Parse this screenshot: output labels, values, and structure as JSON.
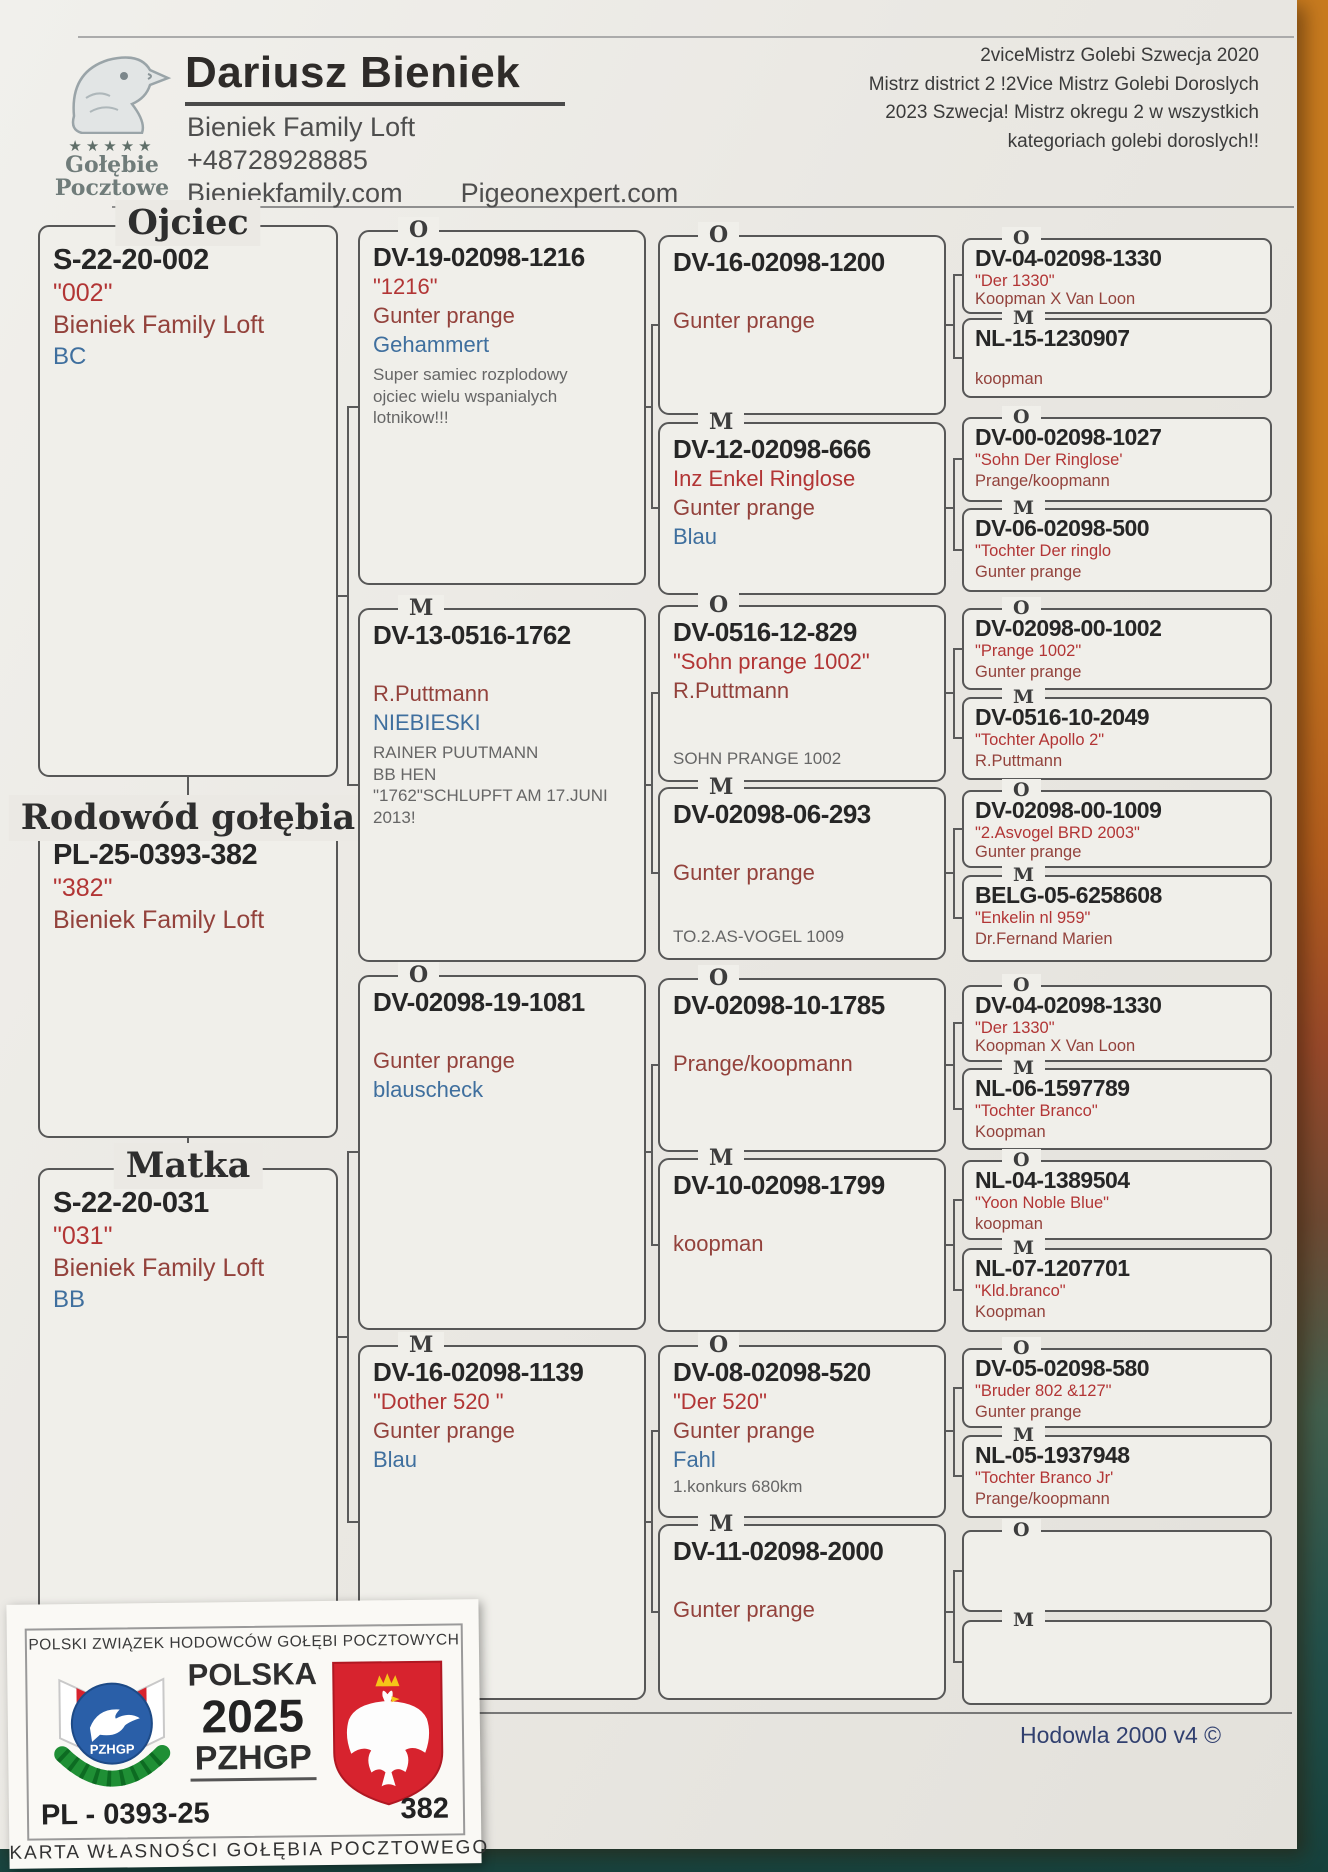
{
  "header": {
    "name": "Dariusz Bieniek",
    "loft": "Bieniek Family Loft",
    "phone": "+48728928885",
    "site1": "Bieniekfamily.com",
    "site2": "Pigeonexpert.com",
    "logo": {
      "stars": "★★★★★",
      "line1": "Gołębie",
      "line2": "Pocztowe"
    },
    "achievements": {
      "line1": "2viceMistrz Golebi Szwecja 2020",
      "line2": "Mistrz district 2 !2Vice Mistrz Golebi Doroslych",
      "line3": "2023 Szwecja! Mistrz okregu 2 w wszystkich",
      "line4": "kategoriach golebi doroslych!!"
    }
  },
  "pedigree": {
    "father": {
      "title": "Ojciec",
      "ring": "S-22-20-002",
      "name": "\"002\"",
      "loft": "Bieniek Family Loft",
      "color": "BC"
    },
    "subject": {
      "title": "Rodowód gołębia",
      "ring": "PL-25-0393-382",
      "name": "\"382\"",
      "loft": "Bieniek Family Loft",
      "color": ""
    },
    "mother": {
      "title": "Matka",
      "ring": "S-22-20-031",
      "name": "\"031\"",
      "loft": "Bieniek Family Loft",
      "color": "BB"
    },
    "gen2": [
      {
        "sex": "O",
        "ring": "DV-19-02098-1216",
        "name": "\"1216\"",
        "loft": "Gunter prange",
        "color": "Gehammert",
        "note": "Super samiec rozplodowy\nojciec wielu wspanialych\nlotnikow!!!"
      },
      {
        "sex": "M",
        "ring": "DV-13-0516-1762",
        "name": "",
        "loft": "R.Puttmann",
        "color": "NIEBIESKI",
        "note": "RAINER PUUTMANN\nBB HEN\n\"1762\"SCHLUPFT AM 17.JUNI\n2013!"
      },
      {
        "sex": "O",
        "ring": "DV-02098-19-1081",
        "name": "",
        "loft": "Gunter prange",
        "color": "blauscheck",
        "note": ""
      },
      {
        "sex": "M",
        "ring": "DV-16-02098-1139",
        "name": "\"Dother 520 \"",
        "loft": "Gunter prange",
        "color": "Blau",
        "note": ""
      }
    ],
    "gen3": [
      {
        "sex": "O",
        "ring": "DV-16-02098-1200",
        "name": "",
        "loft": "Gunter prange",
        "color": "",
        "note": ""
      },
      {
        "sex": "M",
        "ring": "DV-12-02098-666",
        "name": "Inz Enkel Ringlose",
        "loft": "Gunter prange",
        "color": "Blau",
        "note": ""
      },
      {
        "sex": "O",
        "ring": "DV-0516-12-829",
        "name": "\"Sohn prange 1002\"",
        "loft": "R.Puttmann",
        "color": "",
        "note": "SOHN PRANGE 1002"
      },
      {
        "sex": "M",
        "ring": "DV-02098-06-293",
        "name": "",
        "loft": "Gunter prange",
        "color": "",
        "note": "TO.2.AS-VOGEL 1009"
      },
      {
        "sex": "O",
        "ring": "DV-02098-10-1785",
        "name": "",
        "loft": "Prange/koopmann",
        "color": "",
        "note": ""
      },
      {
        "sex": "M",
        "ring": "DV-10-02098-1799",
        "name": "",
        "loft": "koopman",
        "color": "",
        "note": ""
      },
      {
        "sex": "O",
        "ring": "DV-08-02098-520",
        "name": "\"Der 520\"",
        "loft": "Gunter prange",
        "color": "Fahl",
        "note": "1.konkurs  680km"
      },
      {
        "sex": "M",
        "ring": "DV-11-02098-2000",
        "name": "",
        "loft": "Gunter prange",
        "color": "",
        "note": ""
      }
    ],
    "gen4": [
      {
        "sex": "O",
        "ring": "DV-04-02098-1330",
        "name": "\"Der 1330\"",
        "loft": "Koopman X Van Loon"
      },
      {
        "sex": "M",
        "ring": "NL-15-1230907",
        "name": "",
        "loft": "koopman"
      },
      {
        "sex": "O",
        "ring": "DV-00-02098-1027",
        "name": "\"Sohn Der Ringlose'",
        "loft": "Prange/koopmann"
      },
      {
        "sex": "M",
        "ring": "DV-06-02098-500",
        "name": "\"Tochter Der ringlo",
        "loft": "Gunter prange"
      },
      {
        "sex": "O",
        "ring": "DV-02098-00-1002",
        "name": "\"Prange 1002\"",
        "loft": "Gunter prange"
      },
      {
        "sex": "M",
        "ring": "DV-0516-10-2049",
        "name": "\"Tochter Apollo 2\"",
        "loft": "R.Puttmann"
      },
      {
        "sex": "O",
        "ring": "DV-02098-00-1009",
        "name": "\"2.Asvogel BRD 2003\"",
        "loft": "Gunter prange"
      },
      {
        "sex": "M",
        "ring": "BELG-05-6258608",
        "name": "\"Enkelin nl 959\"",
        "loft": "Dr.Fernand Marien"
      },
      {
        "sex": "O",
        "ring": "DV-04-02098-1330",
        "name": "\"Der 1330\"",
        "loft": "Koopman X Van Loon"
      },
      {
        "sex": "M",
        "ring": "NL-06-1597789",
        "name": "\"Tochter Branco\"",
        "loft": "Koopman"
      },
      {
        "sex": "O",
        "ring": "NL-04-1389504",
        "name": "\"Yoon Noble Blue\"",
        "loft": "koopman"
      },
      {
        "sex": "M",
        "ring": "NL-07-1207701",
        "name": "\"Kld.branco\"",
        "loft": "Koopman"
      },
      {
        "sex": "O",
        "ring": "DV-05-02098-580",
        "name": "\"Bruder 802 &127\"",
        "loft": "Gunter prange"
      },
      {
        "sex": "M",
        "ring": "NL-05-1937948",
        "name": "\"Tochter Branco Jr'",
        "loft": "Prange/koopmann"
      },
      {
        "sex": "O",
        "ring": "",
        "name": "",
        "loft": ""
      },
      {
        "sex": "M",
        "ring": "",
        "name": "",
        "loft": ""
      }
    ]
  },
  "stamp": {
    "org": "POLSKI ZWIĄZEK HODOWCÓW GOŁĘBI POCZTOWYCH",
    "country": "POLSKA",
    "year": "2025",
    "assoc": "PZHGP",
    "logo_label": "PZHGP",
    "ring_prefix": "PL - 0393-25",
    "ring_no": "382",
    "card_title": "KARTA  WŁASNOŚCI GOŁĘBIA POCZTOWEGO"
  },
  "footer": {
    "software": "Hodowla 2000 v4 ©"
  }
}
